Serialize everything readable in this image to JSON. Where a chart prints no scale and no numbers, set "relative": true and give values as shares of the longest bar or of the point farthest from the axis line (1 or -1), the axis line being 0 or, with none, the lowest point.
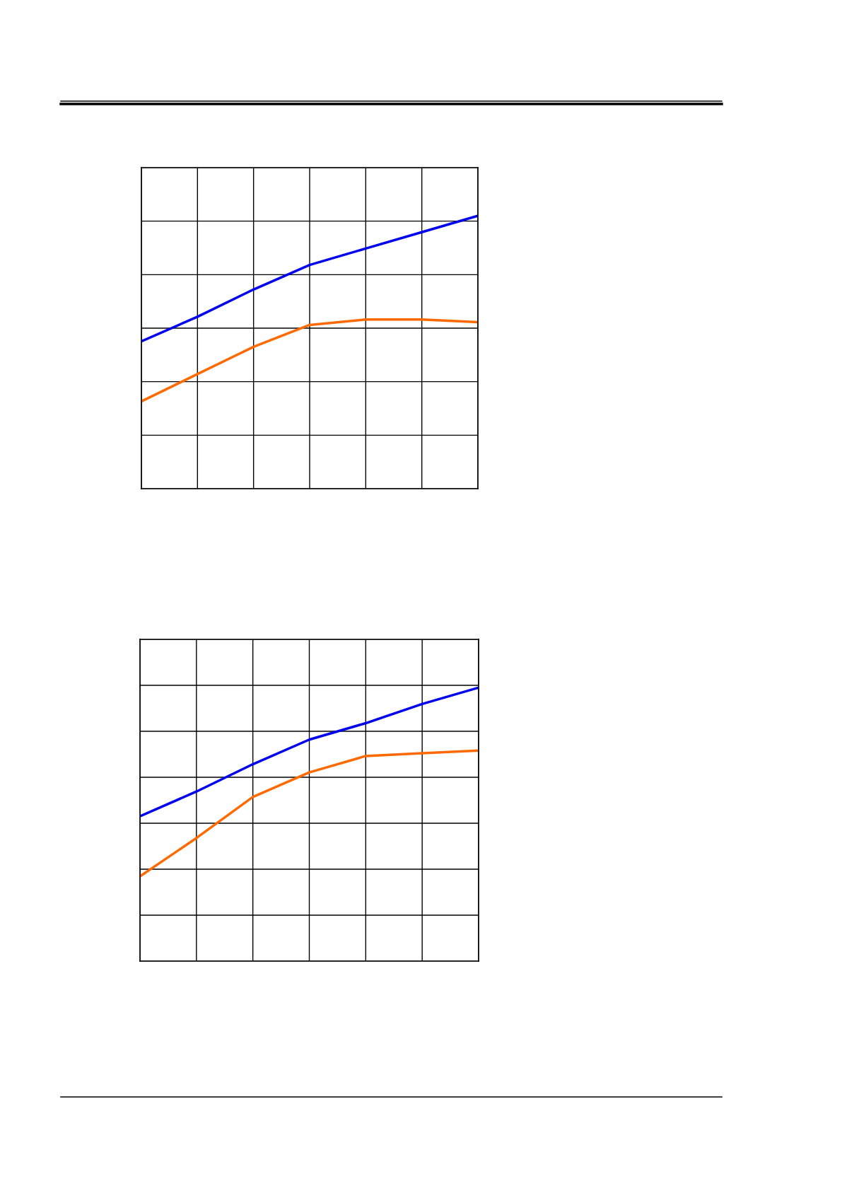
{
  "chart_data": [
    {
      "type": "line",
      "relative": true,
      "grid": true,
      "categories": [
        null,
        null,
        null,
        null,
        null,
        null,
        null
      ],
      "series": [
        {
          "color": "#0000ee",
          "values": [
            0.54,
            0.63,
            0.73,
            0.82,
            0.88,
            0.94,
            1.0
          ]
        },
        {
          "color": "#ff6a00",
          "values": [
            0.32,
            0.42,
            0.52,
            0.6,
            0.62,
            0.62,
            0.61
          ]
        }
      ]
    },
    {
      "type": "line",
      "relative": true,
      "grid": true,
      "categories": [
        null,
        null,
        null,
        null,
        null,
        null,
        null
      ],
      "series": [
        {
          "color": "#0000ee",
          "values": [
            0.53,
            0.62,
            0.72,
            0.81,
            0.87,
            0.94,
            1.0
          ]
        },
        {
          "color": "#ff6a00",
          "values": [
            0.31,
            0.45,
            0.6,
            0.69,
            0.75,
            0.76,
            0.77
          ]
        }
      ]
    }
  ]
}
